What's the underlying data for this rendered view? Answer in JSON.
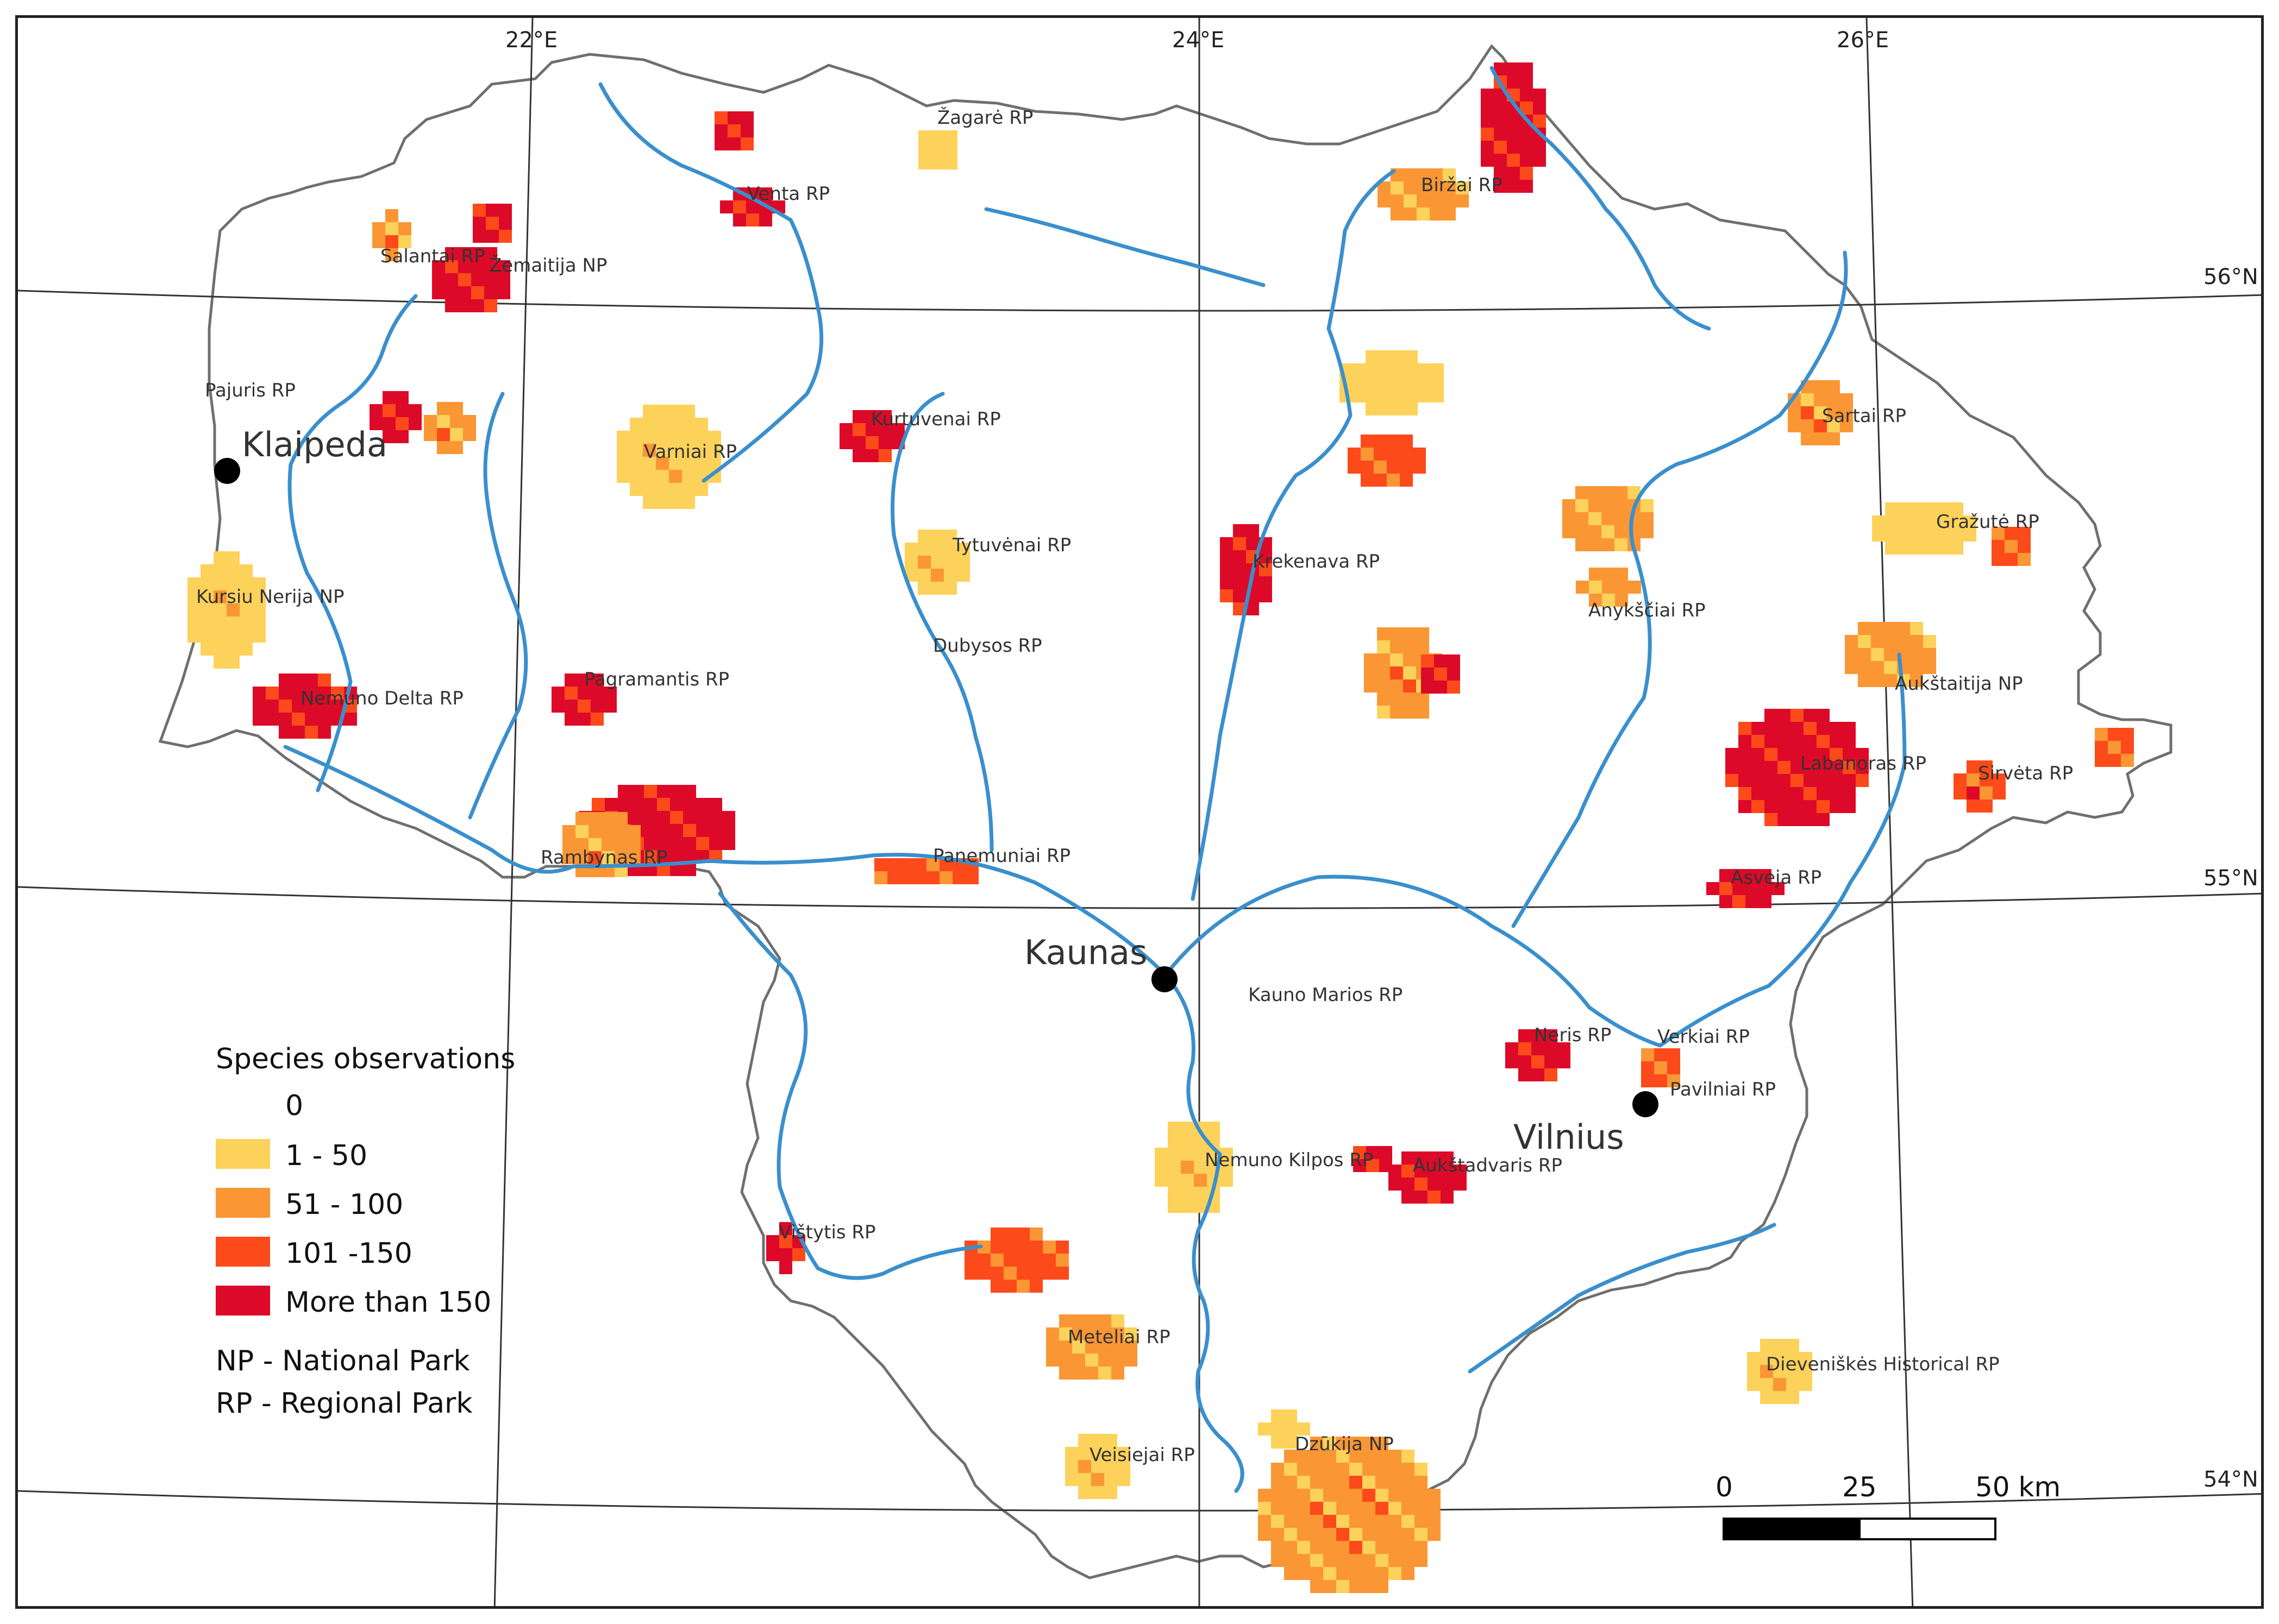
{
  "coordinates": {
    "lon": [
      "22°E",
      "24°E",
      "26°E"
    ],
    "lat": [
      "56°N",
      "55°N",
      "54°N"
    ]
  },
  "colors": {
    "class_0": "#ffffff",
    "class_1_50": "#fdd25a",
    "class_51_100": "#fb9634",
    "class_101_150": "#fc4a1a",
    "class_150_plus": "#dc0a28",
    "river": "#3a8fcd",
    "border": "#6f6f6f"
  },
  "legend": {
    "title": "Species observations",
    "classes": [
      {
        "label": "0",
        "color": "#ffffff"
      },
      {
        "label": "1 - 50",
        "color": "#fdd25a"
      },
      {
        "label": "51 - 100",
        "color": "#fb9634"
      },
      {
        "label": "101 -150",
        "color": "#fc4a1a"
      },
      {
        "label": "More than 150",
        "color": "#dc0a28"
      }
    ],
    "abbreviations": [
      "NP - National Park",
      "RP - Regional Park"
    ]
  },
  "scalebar": {
    "labels": [
      "0",
      "25",
      "50 km"
    ]
  },
  "cities": [
    "Klaipeda",
    "Kaunas",
    "Vilnius"
  ],
  "parks": [
    "Žagarė RP",
    "Venta RP",
    "Biržai RP",
    "Salantai RP",
    "Žemaitija NP",
    "Pajuris RP",
    "Kurtuvenai RP",
    "Varniai RP",
    "Sartai RP",
    "Gražutė RP",
    "Tytuvėnai RP",
    "Krekenava RP",
    "Kursiu Nerija NP",
    "Anykščiai RP",
    "Dubysos RP",
    "Pagramantis RP",
    "Aukštaitija NP",
    "Nemuno Delta RP",
    "Labanoras RP",
    "Sirvėta RP",
    "Rambynas RP",
    "Panemuniai RP",
    "Asveja RP",
    "Kauno Marios RP",
    "Neris RP",
    "Verkiai RP",
    "Pavilniai RP",
    "Nemuno Kilpos RP",
    "Aukštadvaris RP",
    "Vištytis RP",
    "Meteliai RP",
    "Dieveniškės Historical RP",
    "Veisiejai RP",
    "Dzūkija NP"
  ]
}
